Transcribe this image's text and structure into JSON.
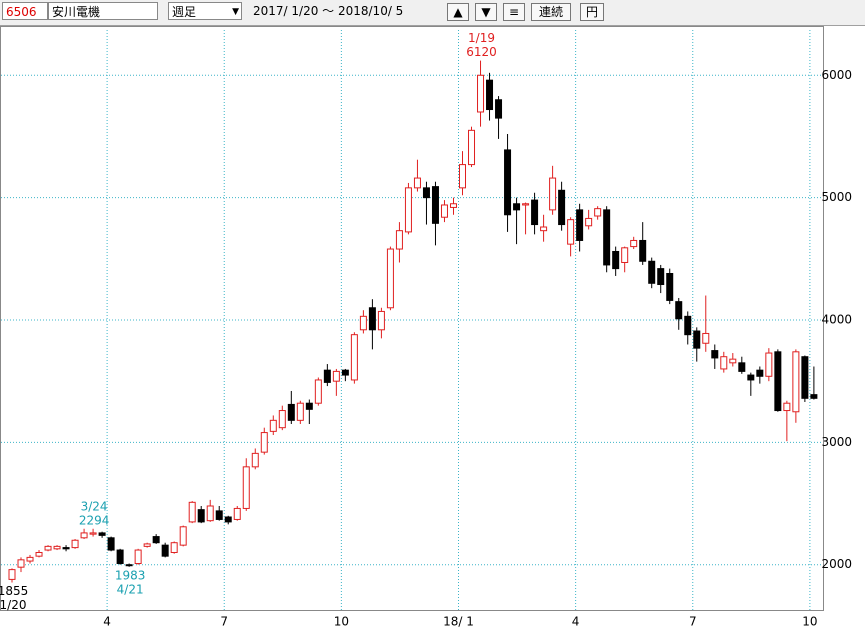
{
  "toolbar": {
    "code": "6506",
    "name": "安川電機",
    "period": "週足",
    "range": "2017/ 1/20 ～ 2018/10/ 5",
    "buttons": [
      "▲",
      "▼",
      "≡",
      "連続",
      "円"
    ]
  },
  "chart_data": {
    "type": "candlestick",
    "up_color": "#e02020",
    "down_color": "#000000",
    "categories": [
      null,
      null,
      null,
      null,
      null,
      null,
      null,
      null,
      null,
      null,
      null,
      "4",
      null,
      null,
      null,
      null,
      null,
      null,
      null,
      null,
      null,
      null,
      null,
      null,
      "7",
      null,
      null,
      null,
      null,
      null,
      null,
      null,
      null,
      null,
      null,
      null,
      null,
      "10",
      null,
      null,
      null,
      null,
      null,
      null,
      null,
      null,
      null,
      null,
      null,
      null,
      "18/ 1",
      null,
      null,
      null,
      null,
      null,
      null,
      null,
      null,
      null,
      null,
      null,
      null,
      "4",
      null,
      null,
      null,
      null,
      null,
      null,
      null,
      null,
      null,
      null,
      null,
      null,
      "7",
      null,
      null,
      null,
      null,
      null,
      null,
      null,
      null,
      null,
      null,
      null,
      null,
      "10"
    ],
    "open": [
      1880,
      1980,
      2030,
      2070,
      2120,
      2130,
      2140,
      2140,
      2220,
      2250,
      2260,
      2220,
      2120,
      2000,
      2010,
      2150,
      2230,
      2160,
      2100,
      2160,
      2350,
      2450,
      2360,
      2440,
      2390,
      2370,
      2460,
      2800,
      2920,
      3090,
      3120,
      3310,
      3180,
      3320,
      3320,
      3590,
      3500,
      3590,
      3510,
      3920,
      4100,
      3920,
      4100,
      4580,
      4720,
      5080,
      5080,
      5090,
      4840,
      4920,
      5080,
      5270,
      5700,
      5960,
      5800,
      5390,
      4950,
      4940,
      4980,
      4730,
      4900,
      5060,
      4620,
      4900,
      4770,
      4850,
      4900,
      4560,
      4470,
      4600,
      4650,
      4480,
      4420,
      4380,
      4150,
      4030,
      3910,
      3810,
      3750,
      3600,
      3650,
      3650,
      3550,
      3590,
      3540,
      3740,
      3260,
      3250,
      3700,
      3390
    ],
    "high": [
      1970,
      2060,
      2080,
      2120,
      2160,
      2160,
      2160,
      2210,
      2294,
      2294,
      2270,
      2230,
      2130,
      2010,
      2130,
      2180,
      2250,
      2180,
      2190,
      2320,
      2520,
      2480,
      2530,
      2480,
      2400,
      2480,
      2870,
      2950,
      3120,
      3220,
      3300,
      3420,
      3340,
      3350,
      3530,
      3640,
      3600,
      3600,
      3900,
      4080,
      4170,
      4100,
      4600,
      4800,
      5120,
      5310,
      5130,
      5130,
      4980,
      5000,
      5380,
      5580,
      6120,
      6020,
      5830,
      5520,
      5000,
      4960,
      5040,
      4860,
      5260,
      5130,
      4840,
      4950,
      4900,
      4930,
      4930,
      4600,
      4600,
      4680,
      4800,
      4510,
      4450,
      4420,
      4180,
      4070,
      3940,
      4200,
      3800,
      3740,
      3730,
      3700,
      3570,
      3620,
      3770,
      3760,
      3340,
      3760,
      3710,
      3620
    ],
    "low": [
      1855,
      1940,
      2010,
      2060,
      2110,
      2120,
      2110,
      2130,
      2210,
      2230,
      2220,
      2110,
      2000,
      1983,
      2000,
      2140,
      2170,
      2060,
      2090,
      2150,
      2340,
      2340,
      2350,
      2360,
      2330,
      2360,
      2440,
      2780,
      2900,
      3060,
      3100,
      3150,
      3150,
      3150,
      3300,
      3460,
      3380,
      3500,
      3480,
      3890,
      3760,
      3850,
      4080,
      4470,
      4700,
      5050,
      4780,
      4610,
      4800,
      4860,
      5020,
      5250,
      5580,
      5630,
      5480,
      4720,
      4620,
      4700,
      4700,
      4640,
      4860,
      4730,
      4520,
      4560,
      4740,
      4820,
      4390,
      4360,
      4390,
      4580,
      4450,
      4260,
      4220,
      4130,
      3920,
      3800,
      3660,
      3740,
      3600,
      3570,
      3620,
      3560,
      3380,
      3480,
      3500,
      3250,
      3010,
      3160,
      3330,
      3350
    ],
    "close": [
      1960,
      2040,
      2060,
      2100,
      2150,
      2150,
      2130,
      2200,
      2260,
      2260,
      2240,
      2120,
      2010,
      1995,
      2120,
      2170,
      2180,
      2070,
      2180,
      2310,
      2510,
      2350,
      2480,
      2370,
      2350,
      2460,
      2800,
      2910,
      3080,
      3180,
      3260,
      3180,
      3320,
      3270,
      3510,
      3490,
      3580,
      3550,
      3880,
      4030,
      3920,
      4070,
      4580,
      4730,
      5080,
      5160,
      5000,
      4790,
      4940,
      4950,
      5270,
      5550,
      6000,
      5720,
      5650,
      4860,
      4900,
      4950,
      4780,
      4760,
      5160,
      4780,
      4820,
      4650,
      4830,
      4910,
      4450,
      4420,
      4590,
      4650,
      4480,
      4300,
      4290,
      4160,
      4010,
      3880,
      3770,
      3890,
      3690,
      3700,
      3680,
      3580,
      3510,
      3540,
      3730,
      3260,
      3320,
      3740,
      3360,
      3360
    ],
    "ylim": [
      1630,
      6370
    ],
    "yticks": [
      2000,
      3000,
      4000,
      5000,
      6000
    ],
    "grid": true,
    "annotations": [
      {
        "index": 0,
        "pos": "below",
        "color": "#000000",
        "lines": [
          "1855",
          "1/20"
        ]
      },
      {
        "index": 9,
        "pos": "above",
        "color": "#1aa0b0",
        "lines": [
          "3/24",
          "2294"
        ]
      },
      {
        "index": 13,
        "pos": "below",
        "color": "#1aa0b0",
        "lines": [
          "1983",
          "4/21"
        ]
      },
      {
        "index": 52,
        "pos": "above",
        "color": "#e02020",
        "lines": [
          "1/19",
          "6120"
        ]
      }
    ]
  }
}
